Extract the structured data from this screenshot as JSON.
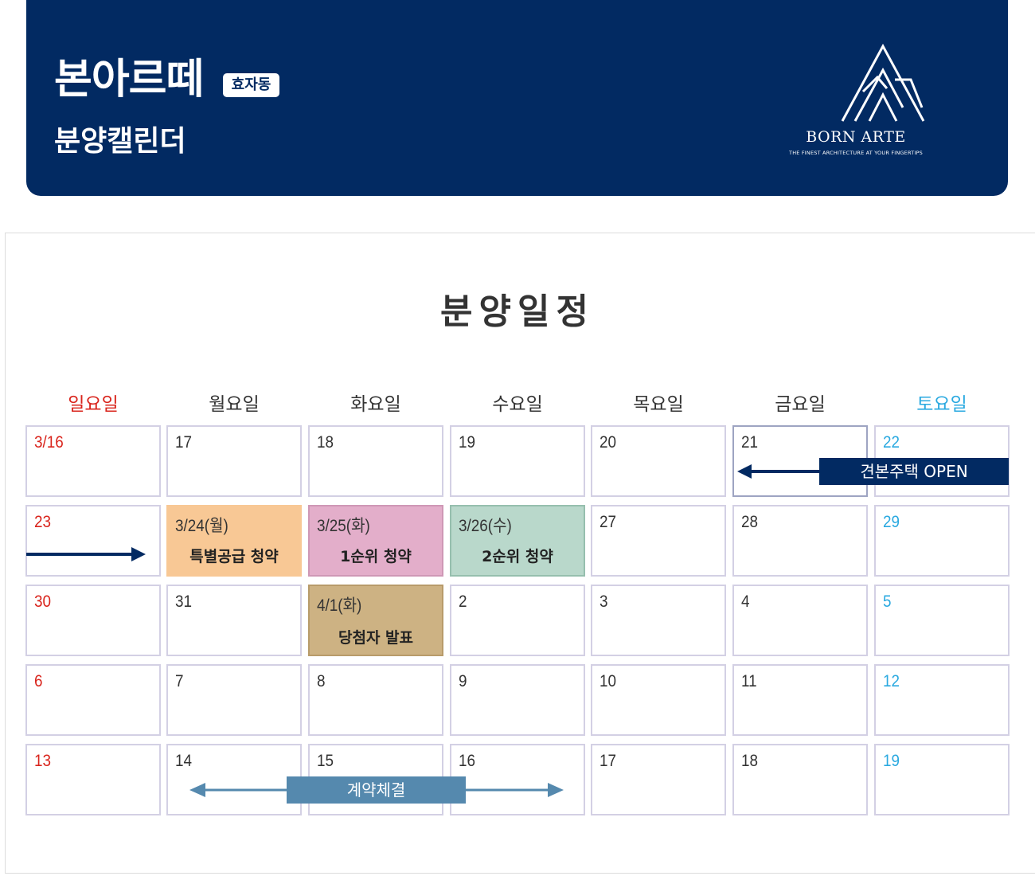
{
  "header": {
    "title": "본아르떼",
    "tag": "효자동",
    "subtitle": "분양캘린더",
    "logo_name": "BORN ARTE",
    "logo_slogan": "THE FINEST ARCHITECTURE AT YOUR FINGERTIPS"
  },
  "schedule_title": "분양일정",
  "weekdays": [
    "일요일",
    "월요일",
    "화요일",
    "수요일",
    "목요일",
    "금요일",
    "토요일"
  ],
  "weeks": [
    [
      "3/16",
      "17",
      "18",
      "19",
      "20",
      "21",
      "22"
    ],
    [
      "23",
      "3/24(월)",
      "3/25(화)",
      "3/26(수)",
      "27",
      "28",
      "29"
    ],
    [
      "30",
      "31",
      "4/1(화)",
      "2",
      "3",
      "4",
      "5"
    ],
    [
      "6",
      "7",
      "8",
      "9",
      "10",
      "11",
      "12"
    ],
    [
      "13",
      "14",
      "15",
      "16",
      "17",
      "18",
      "19"
    ]
  ],
  "events": {
    "special": "특별공급 청약",
    "first": "1순위 청약",
    "second": "2순위 청약",
    "winners": "당첨자 발표",
    "model_house": "견본주택 OPEN",
    "contract": "계약체결"
  },
  "colors": {
    "navy": "#022a62",
    "special": "#f8c895",
    "first": "#e3aeca",
    "second": "#b9d8cb",
    "winners": "#cdb283",
    "contract": "#5589ae",
    "sunday": "#d9241c",
    "saturday": "#2aa9e0"
  }
}
